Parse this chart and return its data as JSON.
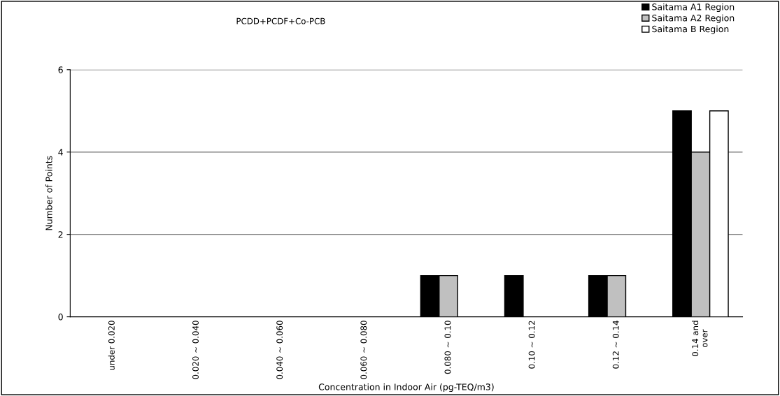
{
  "chart_data": {
    "type": "bar",
    "title": "PCDD+PCDF+Co-PCB",
    "xlabel": "Concentration in Indoor Air (pg-TEQ/m3)",
    "ylabel": "Number of Points",
    "categories": [
      "under 0.020",
      "0.020 ~ 0.040",
      "0.040 ~ 0.060",
      "0.060 ~ 0.080",
      "0.080 ~ 0.10",
      "0.10 ~ 0.12",
      "0.12 ~ 0.14",
      "0.14 and\nover"
    ],
    "series": [
      {
        "name": "Saitama A1 Region",
        "color": "#000000",
        "values": [
          0,
          0,
          0,
          0,
          1,
          1,
          1,
          5
        ]
      },
      {
        "name": "Saitama A2 Region",
        "color": "#c0c0c0",
        "values": [
          0,
          0,
          0,
          0,
          1,
          0,
          1,
          4
        ]
      },
      {
        "name": "Saitama B Region",
        "color": "#ffffff",
        "values": [
          0,
          0,
          0,
          0,
          0,
          0,
          0,
          5
        ]
      }
    ],
    "ylim": [
      0,
      6
    ],
    "yticks": [
      0,
      2,
      4,
      6
    ],
    "grid": "y",
    "legend": "top right"
  }
}
